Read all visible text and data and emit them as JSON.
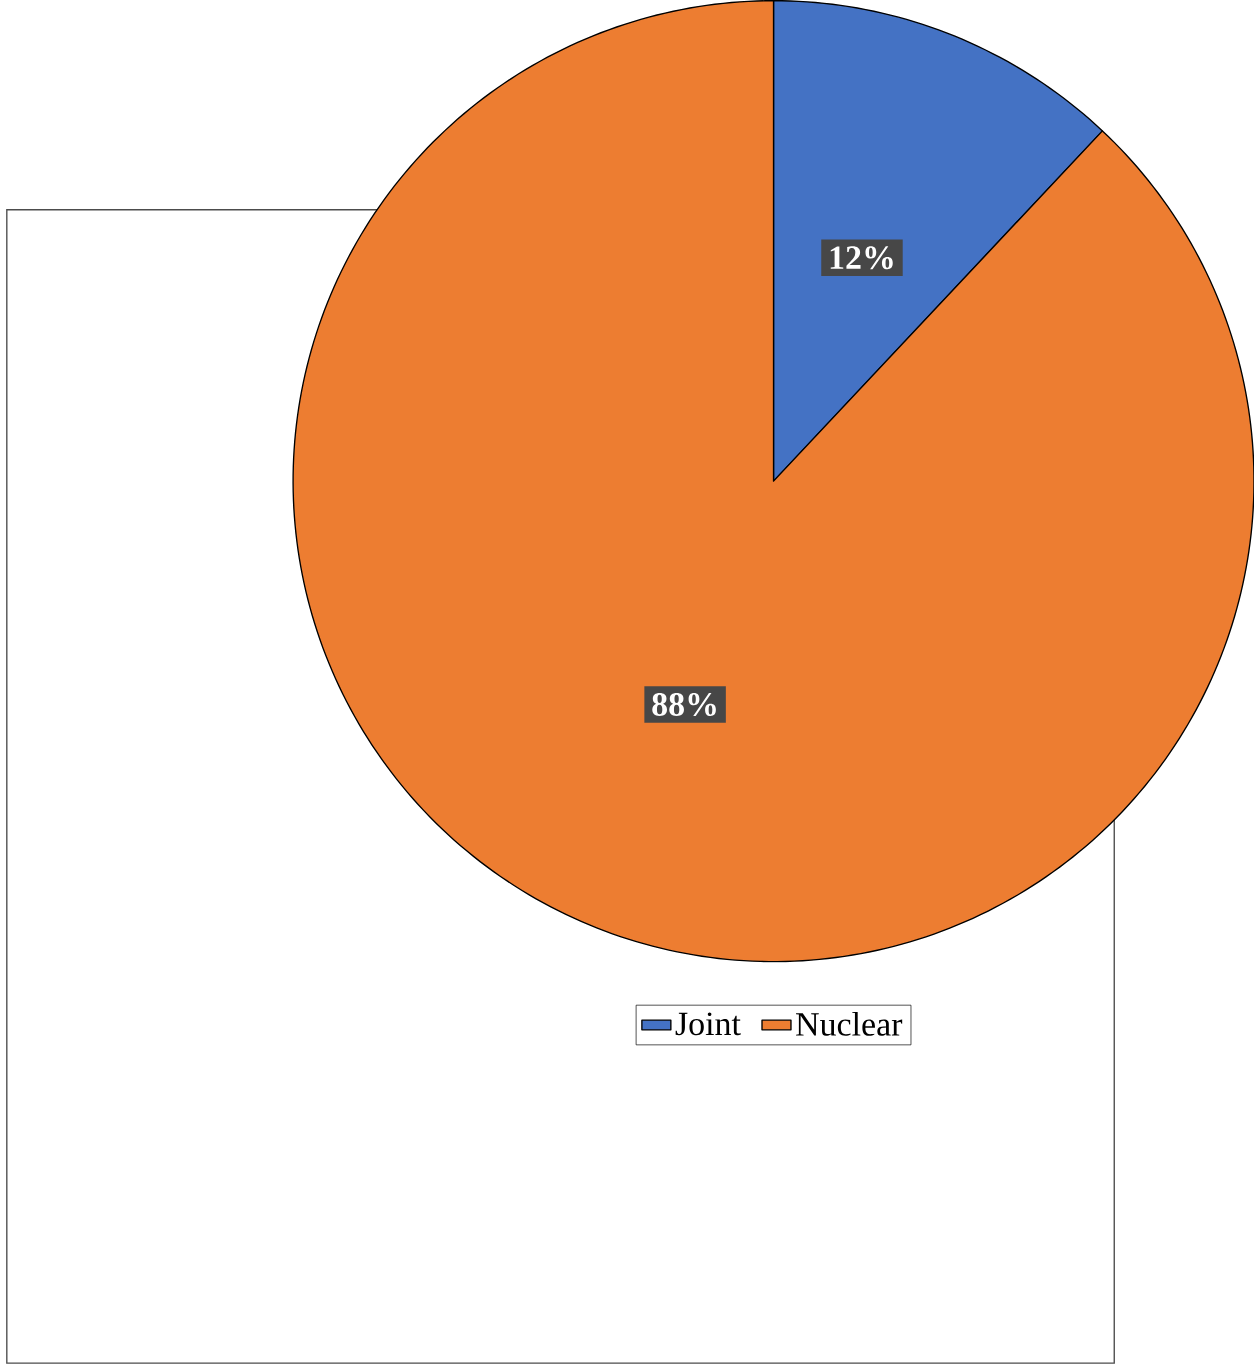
{
  "chart_data": {
    "type": "pie",
    "categories": [
      "Joint",
      "Nuclear"
    ],
    "values": [
      12,
      88
    ],
    "colors": [
      "#4472c4",
      "#ed7d31"
    ],
    "value_labels": [
      "12%",
      "88%"
    ],
    "legend": "bottom"
  }
}
